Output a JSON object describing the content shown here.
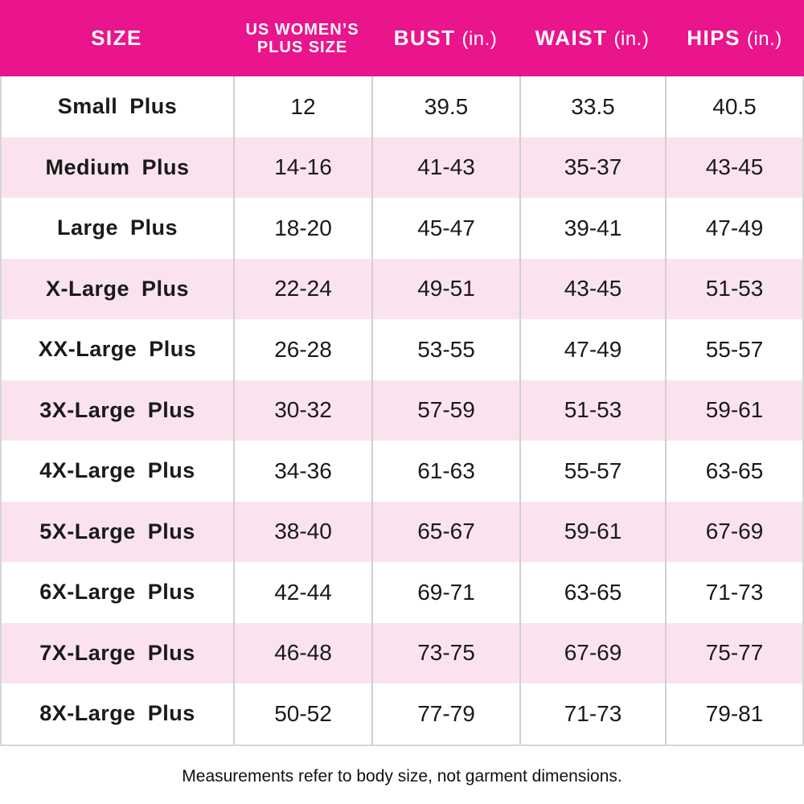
{
  "table": {
    "columns": [
      {
        "label": "SIZE"
      },
      {
        "line1": "US WOMEN’S",
        "line2": "PLUS SIZE"
      },
      {
        "label": "BUST",
        "unit": "(in.)"
      },
      {
        "label": "WAIST",
        "unit": "(in.)"
      },
      {
        "label": "HIPS",
        "unit": "(in.)"
      }
    ],
    "rows": [
      {
        "size": "Small Plus",
        "us_plus_size": "12",
        "bust": "39.5",
        "waist": "33.5",
        "hips": "40.5"
      },
      {
        "size": "Medium Plus",
        "us_plus_size": "14-16",
        "bust": "41-43",
        "waist": "35-37",
        "hips": "43-45"
      },
      {
        "size": "Large Plus",
        "us_plus_size": "18-20",
        "bust": "45-47",
        "waist": "39-41",
        "hips": "47-49"
      },
      {
        "size": "X-Large Plus",
        "us_plus_size": "22-24",
        "bust": "49-51",
        "waist": "43-45",
        "hips": "51-53"
      },
      {
        "size": "XX-Large Plus",
        "us_plus_size": "26-28",
        "bust": "53-55",
        "waist": "47-49",
        "hips": "55-57"
      },
      {
        "size": "3X-Large Plus",
        "us_plus_size": "30-32",
        "bust": "57-59",
        "waist": "51-53",
        "hips": "59-61"
      },
      {
        "size": "4X-Large Plus",
        "us_plus_size": "34-36",
        "bust": "61-63",
        "waist": "55-57",
        "hips": "63-65"
      },
      {
        "size": "5X-Large Plus",
        "us_plus_size": "38-40",
        "bust": "65-67",
        "waist": "59-61",
        "hips": "67-69"
      },
      {
        "size": "6X-Large Plus",
        "us_plus_size": "42-44",
        "bust": "69-71",
        "waist": "63-65",
        "hips": "71-73"
      },
      {
        "size": "7X-Large Plus",
        "us_plus_size": "46-48",
        "bust": "73-75",
        "waist": "67-69",
        "hips": "75-77"
      },
      {
        "size": "8X-Large Plus",
        "us_plus_size": "50-52",
        "bust": "77-79",
        "waist": "71-73",
        "hips": "79-81"
      }
    ]
  },
  "footer": {
    "note": "Measurements refer to body size, not garment dimensions."
  },
  "colors": {
    "header_bg": "#EA148C",
    "header_text": "#FFFFFF",
    "row_alt_bg": "#FAE3EF",
    "row_bg": "#FFFFFF",
    "divider": "#CFCFCF",
    "body_text": "#1A1A1A"
  }
}
